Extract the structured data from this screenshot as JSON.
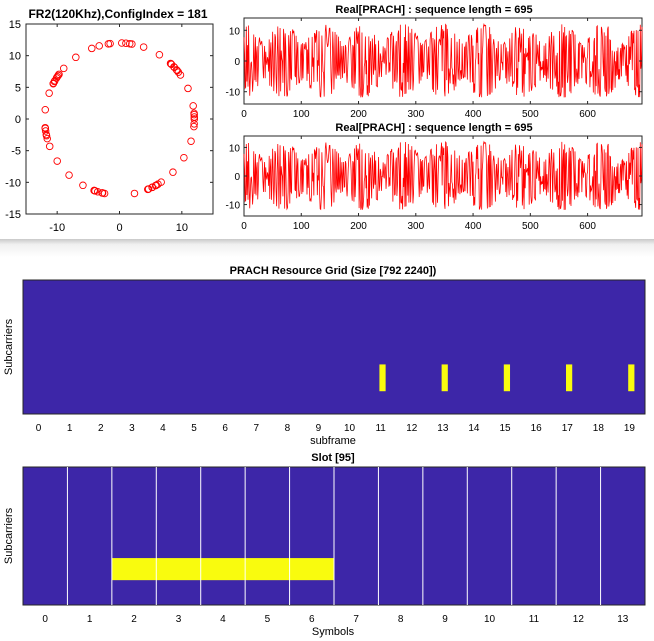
{
  "chart_data": [
    {
      "type": "scatter",
      "title": "FR2(120Khz),ConfigIndex = 181",
      "xlim": [
        -15,
        15
      ],
      "ylim": [
        -15,
        15
      ],
      "xticks": [
        "-10",
        "0",
        "10"
      ],
      "yticks": [
        "15",
        "10",
        "5",
        "0",
        "-5",
        "-10",
        "-15"
      ],
      "marker": "circle",
      "color": "#ff0000",
      "radius": 12,
      "points_count": 69
    },
    {
      "type": "line",
      "title": "Real[PRACH] : sequence length = 695",
      "xlim": [
        0,
        695
      ],
      "ylim": [
        -14,
        14
      ],
      "xticks": [
        "0",
        "100",
        "200",
        "300",
        "400",
        "500",
        "600"
      ],
      "yticks": [
        "10",
        "0",
        "-10"
      ],
      "color": "#ff0000",
      "amplitude": 12,
      "period": 139
    },
    {
      "type": "line",
      "title": "Real[PRACH] : sequence length = 695",
      "xlim": [
        0,
        695
      ],
      "ylim": [
        -14,
        14
      ],
      "xticks": [
        "0",
        "100",
        "200",
        "300",
        "400",
        "500",
        "600"
      ],
      "yticks": [
        "10",
        "0",
        "-10"
      ],
      "color": "#ff0000",
      "amplitude": 12,
      "period": 139
    },
    {
      "type": "heatmap",
      "title": "PRACH Resource Grid (Size [792 2240])",
      "xlabel": "subframe",
      "ylabel": "Subcarriers",
      "xticks": [
        "0",
        "1",
        "2",
        "3",
        "4",
        "5",
        "6",
        "7",
        "8",
        "9",
        "10",
        "11",
        "12",
        "13",
        "14",
        "15",
        "16",
        "17",
        "18",
        "19"
      ],
      "xlim": [
        0,
        20
      ],
      "background_color": "#3d26a8",
      "highlight_color": "#f9fb0e",
      "occasions": [
        {
          "x_start": 11.46,
          "x_end": 11.66,
          "y_from_top_start": 0.63,
          "y_from_top_end": 0.83
        },
        {
          "x_start": 13.46,
          "x_end": 13.66,
          "y_from_top_start": 0.63,
          "y_from_top_end": 0.83
        },
        {
          "x_start": 15.46,
          "x_end": 15.66,
          "y_from_top_start": 0.63,
          "y_from_top_end": 0.83
        },
        {
          "x_start": 17.46,
          "x_end": 17.66,
          "y_from_top_start": 0.63,
          "y_from_top_end": 0.83
        },
        {
          "x_start": 19.46,
          "x_end": 19.66,
          "y_from_top_start": 0.63,
          "y_from_top_end": 0.83
        }
      ]
    },
    {
      "type": "heatmap",
      "title": "Slot [95]",
      "xlabel": "Symbols",
      "ylabel": "Subcarriers",
      "xticks": [
        "0",
        "1",
        "2",
        "3",
        "4",
        "5",
        "6",
        "7",
        "8",
        "9",
        "10",
        "11",
        "12",
        "13"
      ],
      "xlim": [
        -0.5,
        13.5
      ],
      "symbol_boundaries": [
        0.5,
        1.5,
        2.5,
        3.5,
        4.5,
        5.5,
        6.5,
        7.5,
        8.5,
        9.5,
        10.5,
        11.5,
        12.5
      ],
      "background_color": "#3d26a8",
      "highlight_color": "#f9fb0e",
      "grid_line_color": "#ffffff",
      "occupied": {
        "x_start": 1.5,
        "x_end": 6.5,
        "y_from_top_start": 0.66,
        "y_from_top_end": 0.82
      }
    }
  ]
}
